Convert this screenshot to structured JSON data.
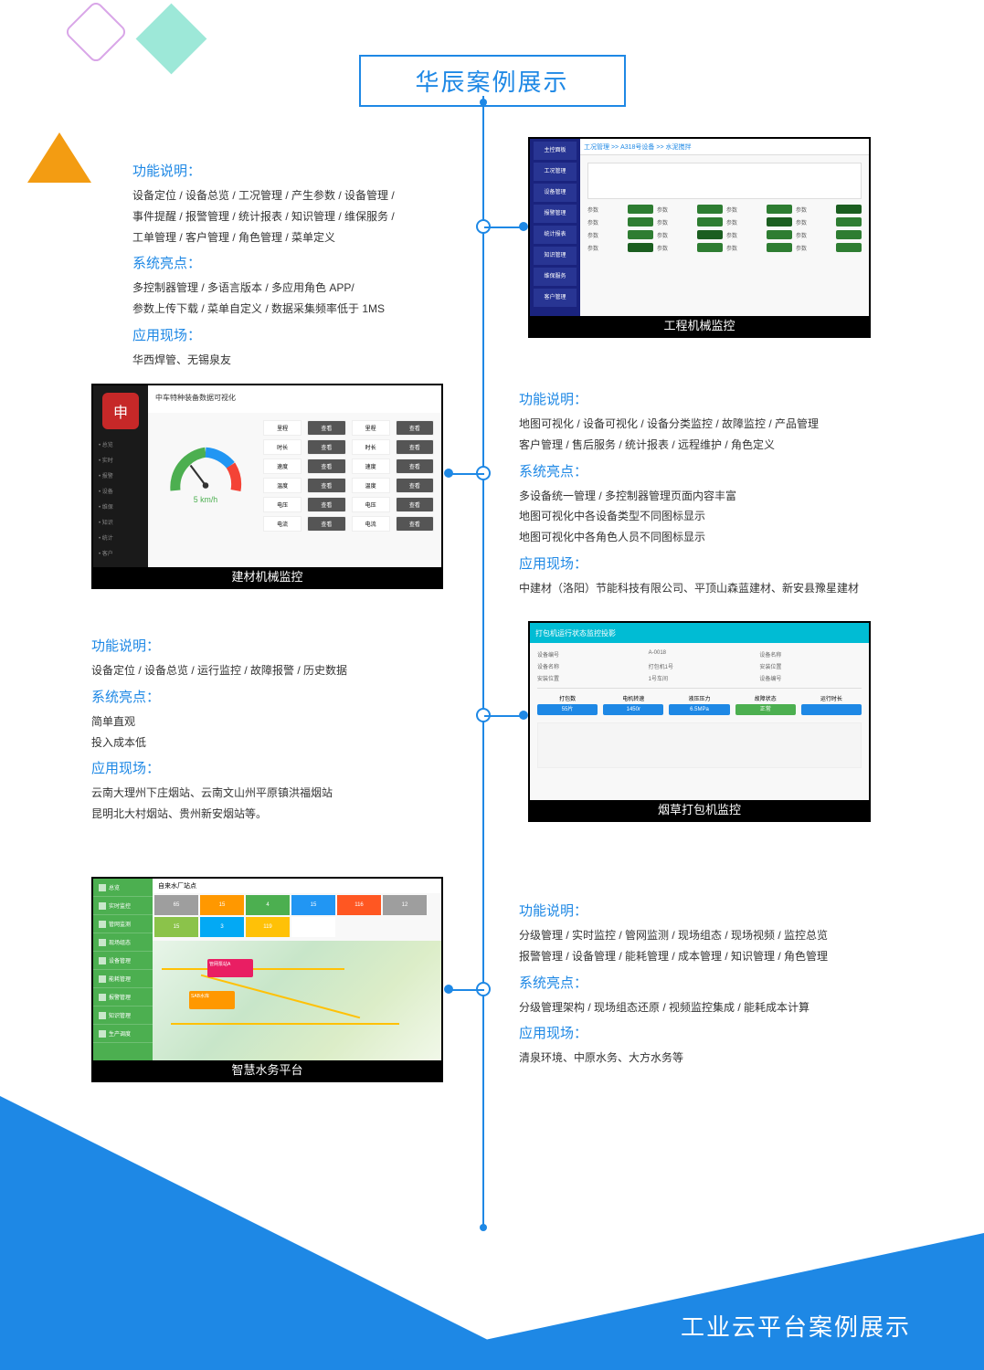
{
  "page_title": "华辰案例展示",
  "footer_title": "工业云平台案例展示",
  "colors": {
    "primary": "#1e88e5",
    "accent_orange": "#f39c12",
    "accent_teal": "#9de8d8",
    "accent_purple": "#d9a6e8"
  },
  "cases": [
    {
      "sections": [
        {
          "title": "功能说明：",
          "text": "设备定位 / 设备总览 / 工况管理 / 产生参数 / 设备管理 /\n事件提醒 / 报警管理 / 统计报表 / 知识管理 / 维保服务 /\n工单管理 / 客户管理 / 角色管理 / 菜单定义"
        },
        {
          "title": "系统亮点：",
          "text": "多控制器管理 / 多语言版本 / 多应用角色 APP/\n参数上传下载 / 菜单自定义 / 数据采集频率低于 1MS"
        },
        {
          "title": "应用现场：",
          "text": "华西焊管、无锡泉友"
        }
      ],
      "screenshot_label": "工程机械监控"
    },
    {
      "sections": [
        {
          "title": "功能说明：",
          "text": "地图可视化 / 设备可视化 / 设备分类监控 / 故障监控 / 产品管理\n客户管理 / 售后服务 / 统计报表 / 远程维护 / 角色定义"
        },
        {
          "title": "系统亮点：",
          "text": "多设备统一管理 / 多控制器管理页面内容丰富\n地图可视化中各设备类型不同图标显示\n地图可视化中各角色人员不同图标显示"
        },
        {
          "title": "应用现场：",
          "text": "中建材（洛阳）节能科技有限公司、平顶山森蓝建材、新安县豫星建材"
        }
      ],
      "screenshot_label": "建材机械监控"
    },
    {
      "sections": [
        {
          "title": "功能说明：",
          "text": "设备定位 / 设备总览 / 运行监控 / 故障报警 / 历史数据"
        },
        {
          "title": "系统亮点：",
          "text": "简单直观\n投入成本低"
        },
        {
          "title": "应用现场：",
          "text": "云南大理州下庄烟站、云南文山州平原镇洪福烟站\n昆明北大村烟站、贵州新安烟站等。"
        }
      ],
      "screenshot_label": "烟草打包机监控"
    },
    {
      "sections": [
        {
          "title": "功能说明：",
          "text": "分级管理 / 实时监控 / 管网监测 / 现场组态 / 现场视频 / 监控总览\n报警管理 / 设备管理 / 能耗管理 / 成本管理 / 知识管理 / 角色管理"
        },
        {
          "title": "系统亮点：",
          "text": "分级管理架构 / 现场组态还原 / 视频监控集成 / 能耗成本计算"
        },
        {
          "title": "应用现场：",
          "text": "清泉环境、中原水务、大方水务等"
        }
      ],
      "screenshot_label": "智慧水务平台"
    }
  ],
  "ss1": {
    "header": "工况管理 >> A318号设备 >> 水泥搅拌",
    "menu": [
      "主控面板",
      "工况管理",
      "设备管理",
      "报警管理",
      "统计报表",
      "知识管理",
      "维保服务",
      "客户管理"
    ],
    "bars_colors": [
      "#2e7d32",
      "#2e7d32",
      "#2e7d32",
      "#1b5e20",
      "#2e7d32",
      "#2e7d32",
      "#2e7d32"
    ]
  },
  "ss2": {
    "header": "中车特种装备数据可视化",
    "logo_text": "申",
    "menu": [
      "总览",
      "实时",
      "报警",
      "设备",
      "维保",
      "知识",
      "统计",
      "客户"
    ],
    "gauge_value": "5 km/h",
    "stat_labels": [
      "里程",
      "时长",
      "速度",
      "温度",
      "电压",
      "电流"
    ]
  },
  "ss3": {
    "header": "打包机运行状态监控投影",
    "info": [
      "设备编号",
      "A-0018",
      "设备名称",
      "打包机1号",
      "安装位置",
      "1号车间"
    ],
    "status_cols": [
      "打包数",
      "55片",
      "电机转速",
      "1450r",
      "液压压力",
      "6.5MPa",
      "故障状态",
      "正常",
      "运行时长"
    ],
    "status_colors": [
      "#1e88e5",
      "#1e88e5",
      "#1e88e5",
      "#4caf50",
      "#1e88e5"
    ]
  },
  "ss4": {
    "header": "自来水厂站点",
    "menu": [
      "总览",
      "实时监控",
      "管网监测",
      "现场组态",
      "设备管理",
      "能耗管理",
      "报警管理",
      "知识管理",
      "生产调度"
    ],
    "tiles": [
      {
        "n": "65",
        "c": "#9e9e9e"
      },
      {
        "n": "15",
        "c": "#ff9800"
      },
      {
        "n": "4",
        "c": "#4caf50"
      },
      {
        "n": "15",
        "c": "#2196f3"
      },
      {
        "n": "116",
        "c": "#ff5722"
      },
      {
        "n": "12",
        "c": "#9e9e9e"
      },
      {
        "n": "15",
        "c": "#8bc34a"
      },
      {
        "n": "3",
        "c": "#03a9f4"
      },
      {
        "n": "119",
        "c": "#ffc107"
      },
      {
        "n": "",
        "c": "#fff"
      }
    ],
    "markers": [
      "管网泵站A",
      "SAB水库"
    ]
  }
}
